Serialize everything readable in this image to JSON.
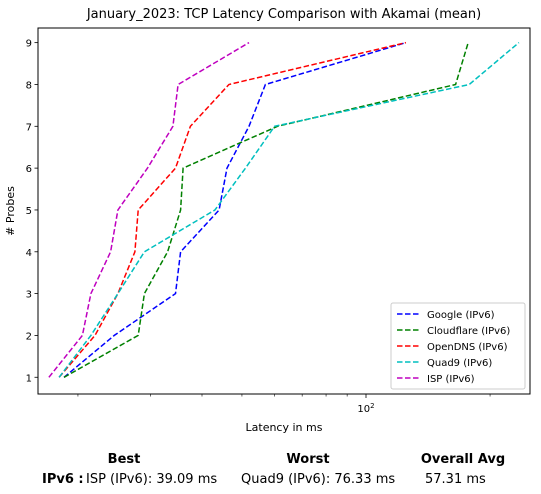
{
  "chart_data": {
    "type": "line",
    "title": "January_2023: TCP Latency Comparison with Akamai (mean)",
    "xlabel": "Latency in ms",
    "ylabel": "# Probes",
    "xscale": "log",
    "xlim": [
      16,
      250
    ],
    "ylim": [
      0.6,
      9.35
    ],
    "y_ticks": [
      1,
      2,
      3,
      4,
      5,
      6,
      7,
      8,
      9
    ],
    "x_ticks_major": [
      {
        "value": 100,
        "label": "10^2"
      }
    ],
    "x_ticks_minor": [
      20,
      30,
      40,
      50,
      60,
      70,
      80,
      90,
      200
    ],
    "grid": false,
    "legend_position": "lower right",
    "series": [
      {
        "name": "Google (IPv6)",
        "color": "#0000ff",
        "points": [
          [
            18.5,
            1
          ],
          [
            24.5,
            2
          ],
          [
            34.5,
            3
          ],
          [
            35.5,
            4
          ],
          [
            44,
            5
          ],
          [
            46,
            6
          ],
          [
            52,
            7
          ],
          [
            57,
            8
          ],
          [
            125,
            9
          ]
        ]
      },
      {
        "name": "Cloudflare (IPv6)",
        "color": "#008000",
        "points": [
          [
            18.5,
            1
          ],
          [
            28,
            2
          ],
          [
            29,
            3
          ],
          [
            33,
            4
          ],
          [
            35.5,
            5
          ],
          [
            36,
            6
          ],
          [
            61,
            7
          ],
          [
            165,
            8
          ],
          [
            177,
            9
          ]
        ]
      },
      {
        "name": "OpenDNS (IPv6)",
        "color": "#ff0000",
        "points": [
          [
            18,
            1
          ],
          [
            22,
            2
          ],
          [
            25,
            3
          ],
          [
            27.5,
            4
          ],
          [
            28,
            5
          ],
          [
            34.5,
            6
          ],
          [
            37.5,
            7
          ],
          [
            46.5,
            8
          ],
          [
            125,
            9
          ]
        ]
      },
      {
        "name": "Quad9 (IPv6)",
        "color": "#00bfbf",
        "points": [
          [
            18,
            1
          ],
          [
            21.5,
            2
          ],
          [
            25,
            3
          ],
          [
            29,
            4
          ],
          [
            43,
            5
          ],
          [
            51,
            6
          ],
          [
            60,
            7
          ],
          [
            178,
            8
          ],
          [
            235,
            9
          ]
        ]
      },
      {
        "name": "ISP (IPv6)",
        "color": "#bf00bf",
        "points": [
          [
            17,
            1
          ],
          [
            20.5,
            2
          ],
          [
            21.5,
            3
          ],
          [
            24,
            4
          ],
          [
            25,
            5
          ],
          [
            29.5,
            6
          ],
          [
            34,
            7
          ],
          [
            35,
            8
          ],
          [
            52,
            9
          ]
        ]
      }
    ]
  },
  "summary": {
    "header_best": "Best",
    "header_worst": "Worst",
    "header_avg": "Overall Avg",
    "row_label": "IPv6 :",
    "best_value": "ISP (IPv6): 39.09 ms",
    "worst_value": "Quad9 (IPv6): 76.33 ms",
    "avg_value": "57.31 ms"
  }
}
